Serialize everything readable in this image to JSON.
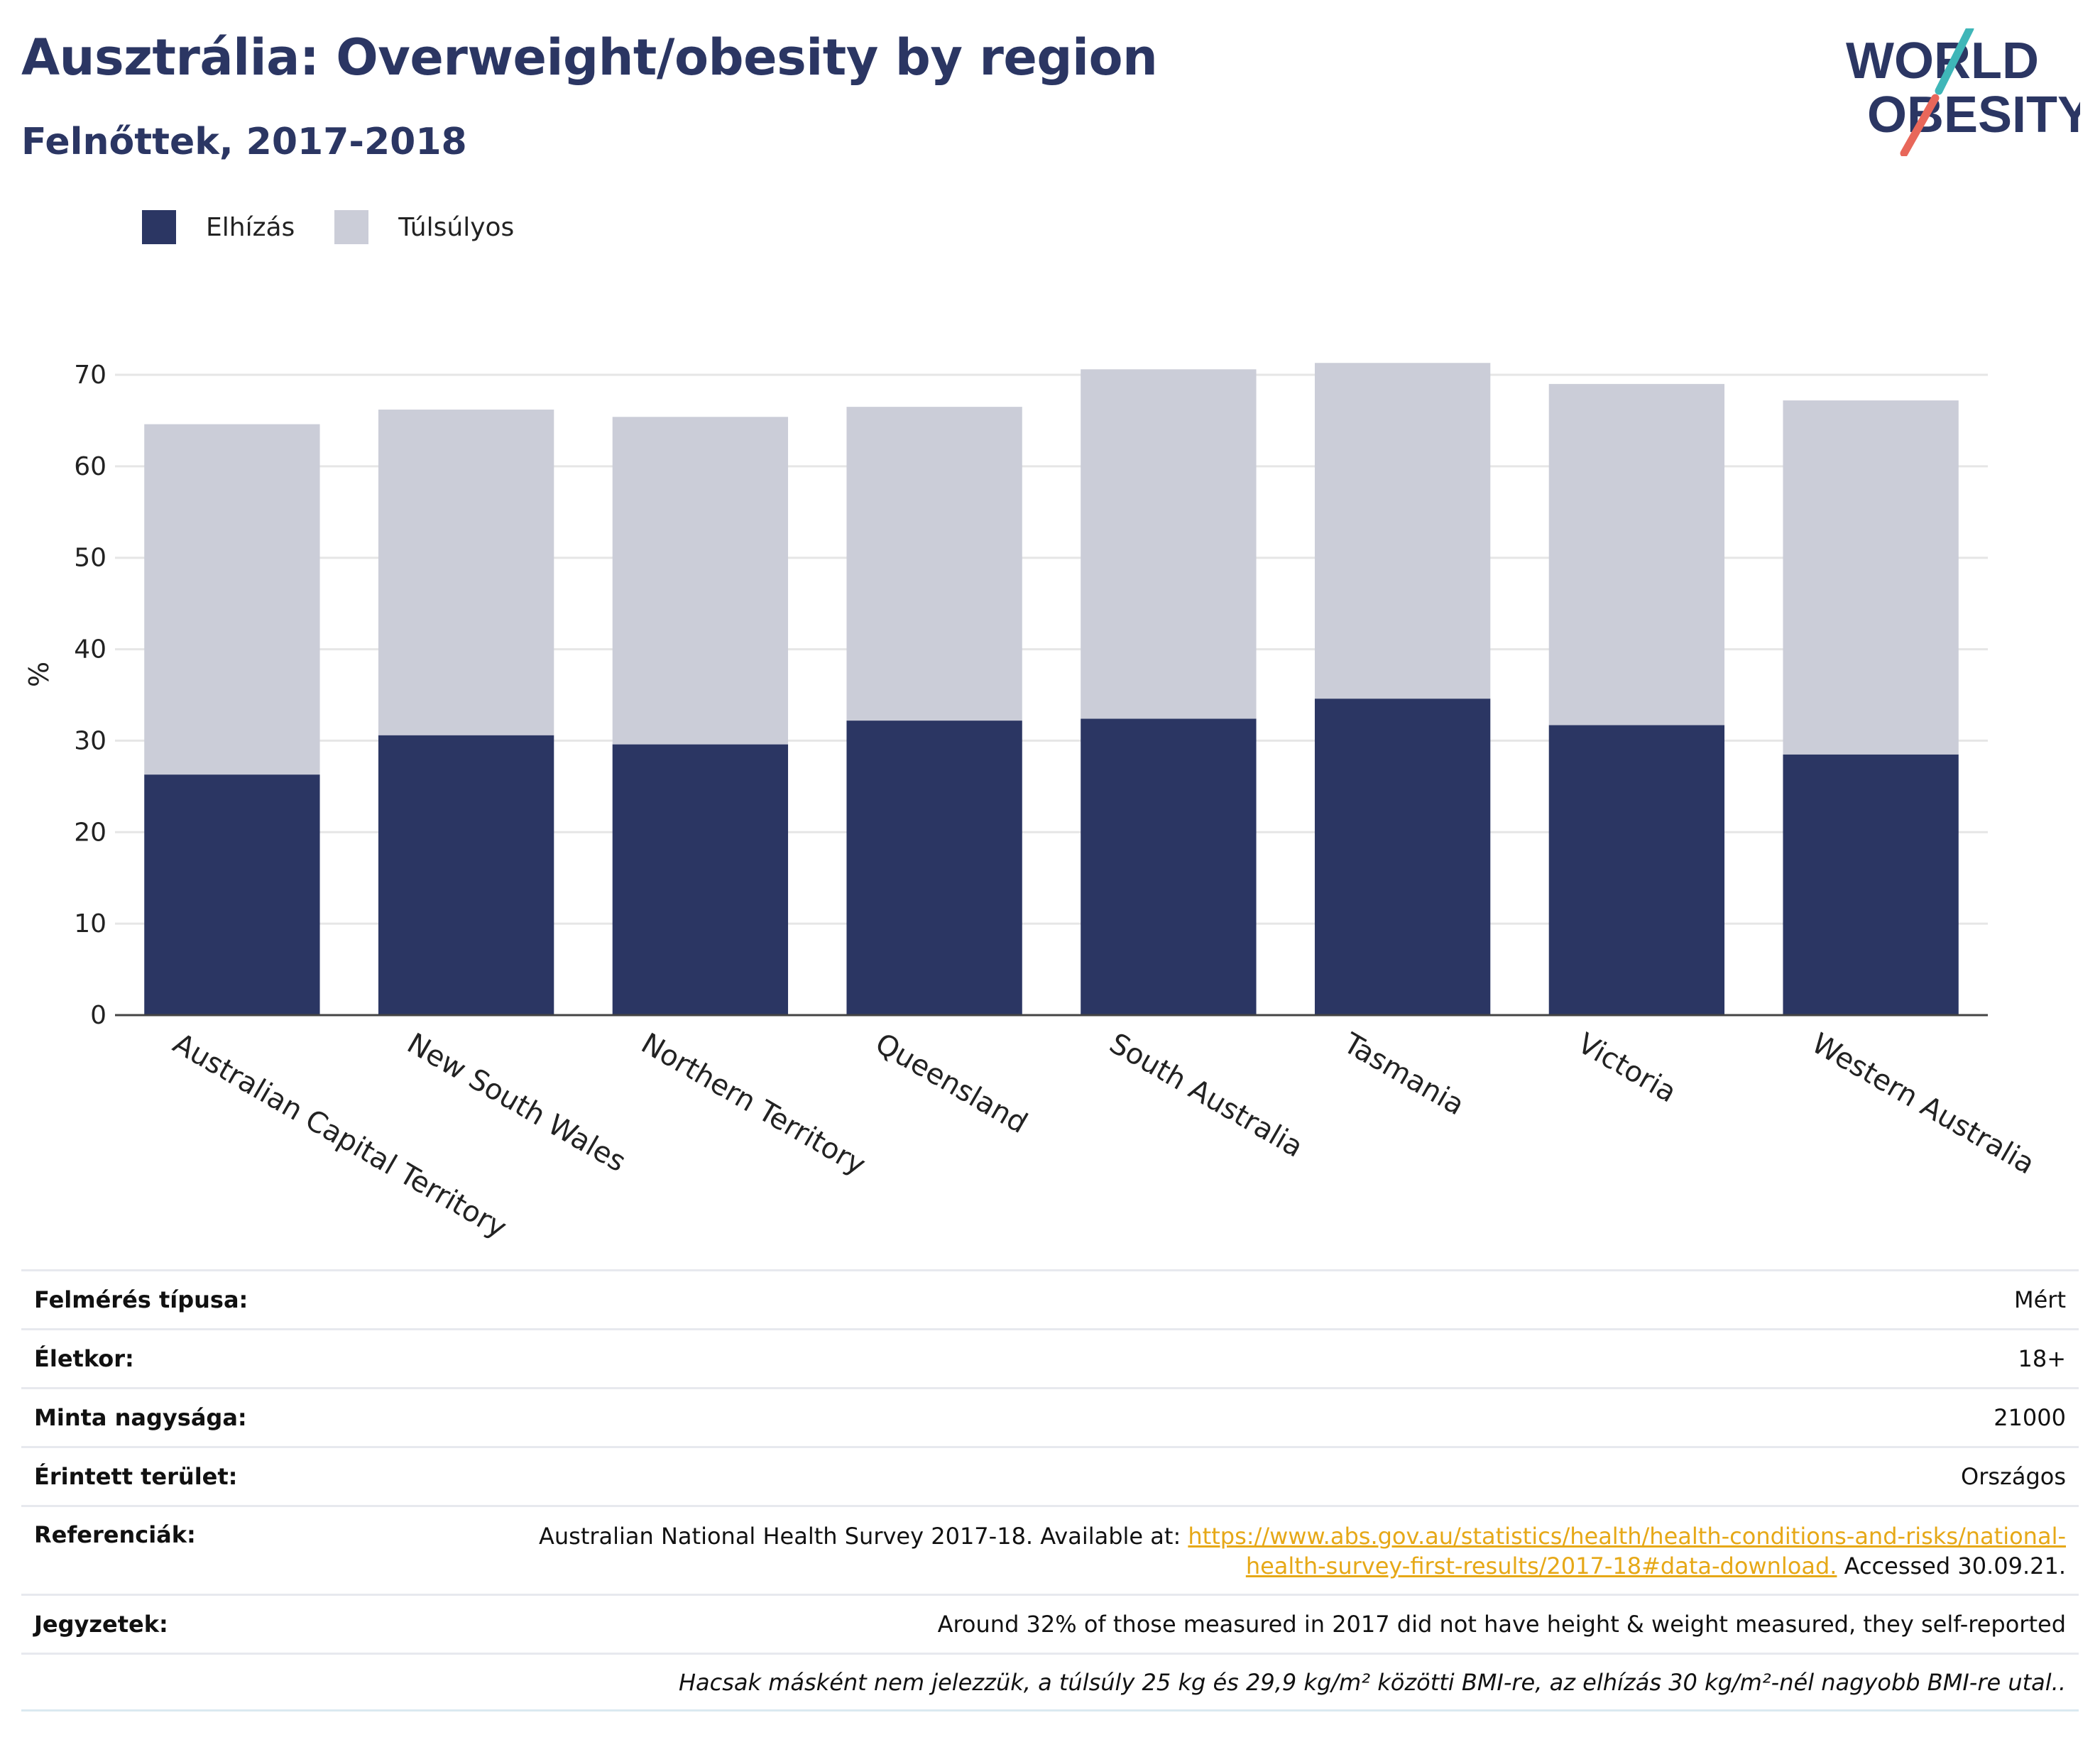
{
  "header": {
    "title": "Ausztrália: Overweight/obesity by region",
    "subtitle": "Felnőttek, 2017-2018",
    "logo_line1": "WORLD",
    "logo_line2": "OBESITY"
  },
  "colors": {
    "obesity": "#2b3663",
    "overweight": "#cbcdd8",
    "title": "#2b3663",
    "link": "#e6a817",
    "logo_teal": "#3fb6b8",
    "logo_coral": "#e8675a"
  },
  "chart_data": {
    "type": "bar",
    "stacked": true,
    "title": "Ausztrália: Overweight/obesity by region",
    "subtitle": "Felnőttek, 2017-2018",
    "xlabel": "",
    "ylabel": "%",
    "ylim": [
      0,
      70
    ],
    "yticks": [
      0,
      10,
      20,
      30,
      40,
      50,
      60,
      70
    ],
    "grid": true,
    "legend_position": "top-left",
    "categories": [
      "Australian Capital Territory",
      "New South Wales",
      "Northern Territory",
      "Queensland",
      "South Australia",
      "Tasmania",
      "Victoria",
      "Western Australia"
    ],
    "series": [
      {
        "name": "Elhízás",
        "values": [
          26.3,
          30.6,
          29.6,
          32.2,
          32.4,
          34.6,
          31.7,
          28.5
        ]
      },
      {
        "name": "Túlsúlyos",
        "values": [
          38.3,
          35.6,
          35.8,
          34.3,
          38.2,
          36.7,
          37.3,
          38.7
        ]
      }
    ]
  },
  "info": {
    "survey_type": {
      "label": "Felmérés típusa:",
      "value": "Mért"
    },
    "age": {
      "label": "Életkor:",
      "value": "18+"
    },
    "sample_size": {
      "label": "Minta nagysága:",
      "value": "21000"
    },
    "area": {
      "label": "Érintett terület:",
      "value": "Országos"
    },
    "references": {
      "label": "Referenciák:",
      "prefix": "Australian National Health Survey 2017-18. Available at: ",
      "link_line1": "https://www.abs.gov.au/statistics/health/health-conditions-and-risks/national-",
      "link_line2": "health-survey-first-results/2017-18#data-download.",
      "suffix": " Accessed 30.09.21."
    },
    "notes": {
      "label": "Jegyzetek:",
      "value": "Around 32% of those measured in 2017 did not have height & weight measured, they self-reported"
    },
    "footnote": "Hacsak másként nem jelezzük, a túlsúly 25 kg és 29,9 kg/m² közötti BMI-re, az elhízás 30 kg/m²-nél nagyobb BMI-re utal.."
  }
}
